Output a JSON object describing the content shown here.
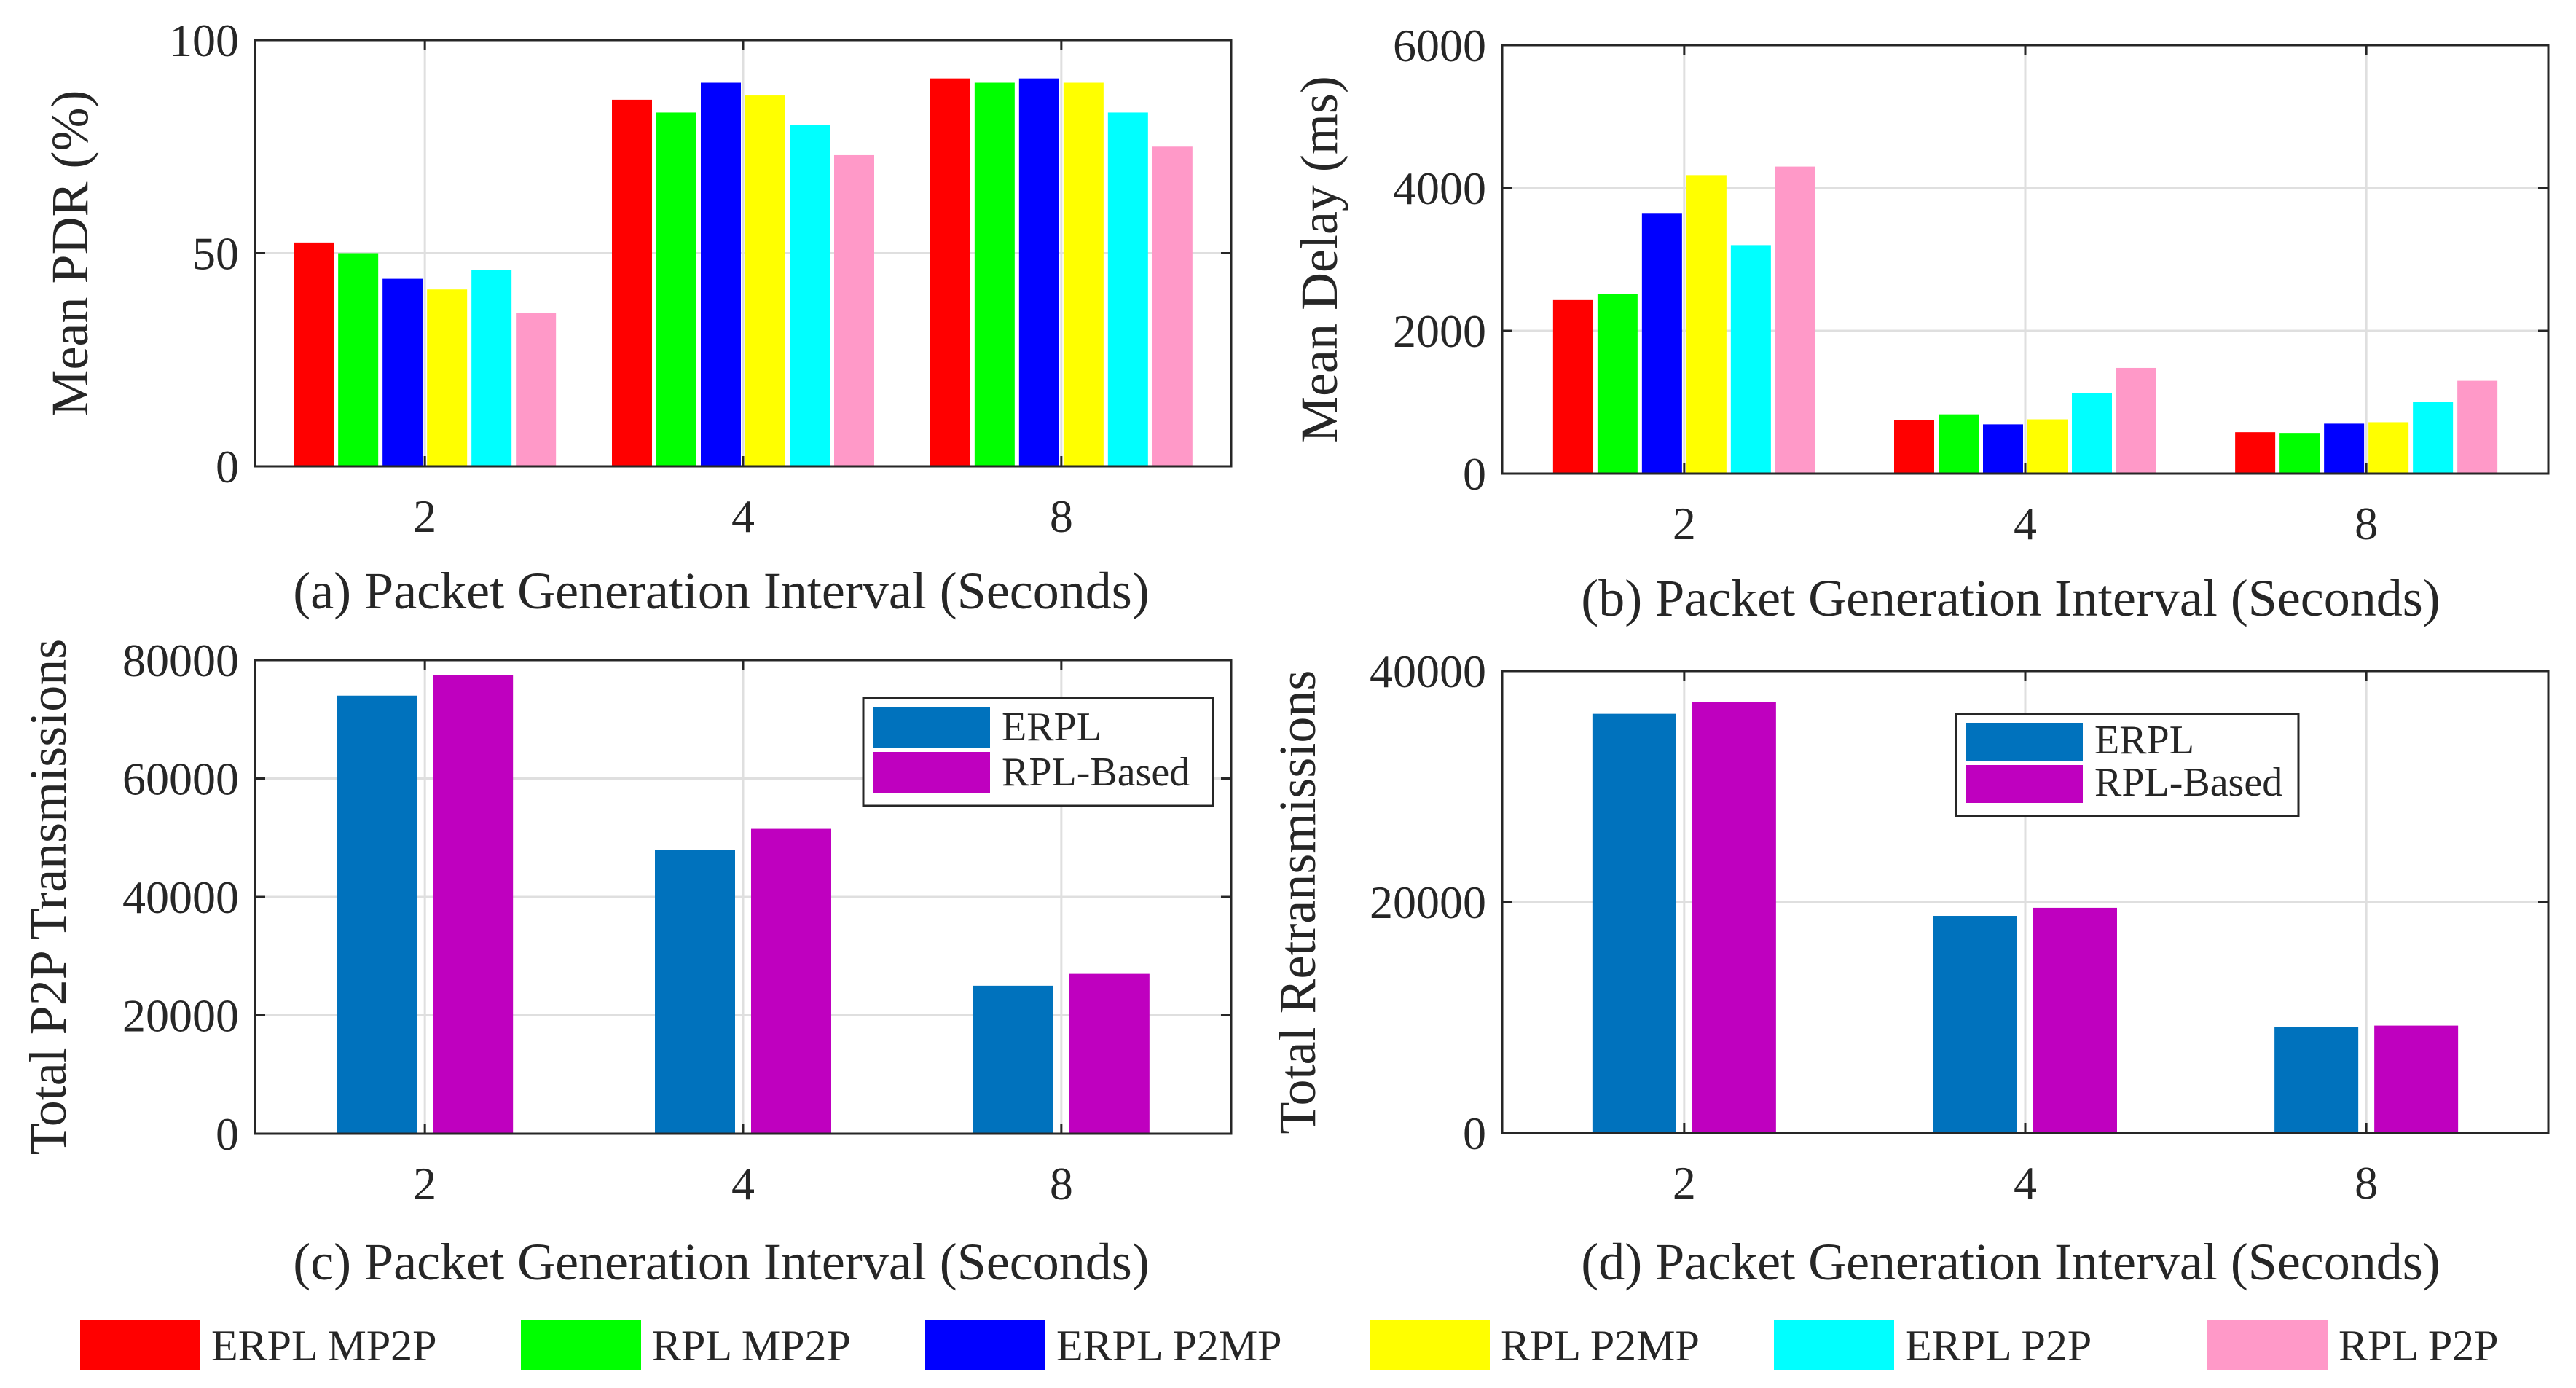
{
  "chart_data": [
    {
      "id": "a",
      "type": "bar",
      "caption": "(a) Packet Generation Interval (Seconds)",
      "ylabel": "Mean PDR (%)",
      "categories": [
        "2",
        "4",
        "8"
      ],
      "ylim": [
        0,
        100
      ],
      "yticks": [
        0,
        50,
        100
      ],
      "grid": true,
      "series": [
        {
          "name": "ERPL MP2P",
          "color": "#ff0000",
          "values": [
            52.5,
            86,
            91
          ]
        },
        {
          "name": "RPL MP2P",
          "color": "#00ff00",
          "values": [
            50,
            83,
            90
          ]
        },
        {
          "name": "ERPL P2MP",
          "color": "#0000ff",
          "values": [
            44,
            90,
            91
          ]
        },
        {
          "name": "RPL P2MP",
          "color": "#ffff00",
          "values": [
            41.5,
            87,
            90
          ]
        },
        {
          "name": "ERPL P2P",
          "color": "#00ffff",
          "values": [
            46,
            80,
            83
          ]
        },
        {
          "name": "RPL P2P",
          "color": "#ff99c8",
          "values": [
            36,
            73,
            75
          ]
        }
      ]
    },
    {
      "id": "b",
      "type": "bar",
      "caption": "(b) Packet Generation Interval (Seconds)",
      "ylabel": "Mean Delay (ms)",
      "categories": [
        "2",
        "4",
        "8"
      ],
      "ylim": [
        0,
        6000
      ],
      "yticks": [
        0,
        2000,
        4000,
        6000
      ],
      "grid": true,
      "series": [
        {
          "name": "ERPL MP2P",
          "color": "#ff0000",
          "values": [
            2430,
            750,
            580
          ]
        },
        {
          "name": "RPL MP2P",
          "color": "#00ff00",
          "values": [
            2520,
            830,
            570
          ]
        },
        {
          "name": "ERPL P2MP",
          "color": "#0000ff",
          "values": [
            3640,
            690,
            700
          ]
        },
        {
          "name": "RPL P2MP",
          "color": "#ffff00",
          "values": [
            4180,
            760,
            720
          ]
        },
        {
          "name": "ERPL P2P",
          "color": "#00ffff",
          "values": [
            3200,
            1130,
            1000
          ]
        },
        {
          "name": "RPL P2P",
          "color": "#ff99c8",
          "values": [
            4300,
            1480,
            1300
          ]
        }
      ]
    },
    {
      "id": "c",
      "type": "bar",
      "caption": "(c) Packet Generation Interval (Seconds)",
      "ylabel": "Total P2P Transmissions",
      "categories": [
        "2",
        "4",
        "8"
      ],
      "ylim": [
        0,
        80000
      ],
      "yticks": [
        0,
        20000,
        40000,
        60000,
        80000
      ],
      "grid": true,
      "legend_position": "top-right",
      "series": [
        {
          "name": "ERPL",
          "color": "#0072bd",
          "values": [
            74000,
            48000,
            25000
          ]
        },
        {
          "name": "RPL-Based",
          "color": "#bf00bf",
          "values": [
            77500,
            51500,
            27000
          ]
        }
      ]
    },
    {
      "id": "d",
      "type": "bar",
      "caption": "(d) Packet Generation Interval (Seconds)",
      "ylabel": "Total Retransmissions",
      "categories": [
        "2",
        "4",
        "8"
      ],
      "ylim": [
        0,
        40000
      ],
      "yticks": [
        0,
        20000,
        40000
      ],
      "grid": true,
      "legend_position": "top-right",
      "series": [
        {
          "name": "ERPL",
          "color": "#0072bd",
          "values": [
            36300,
            18800,
            9200
          ]
        },
        {
          "name": "RPL-Based",
          "color": "#bf00bf",
          "values": [
            37300,
            19500,
            9300
          ]
        }
      ]
    }
  ],
  "bottom_legend": [
    {
      "name": "ERPL MP2P",
      "color": "#ff0000"
    },
    {
      "name": "RPL MP2P",
      "color": "#00ff00"
    },
    {
      "name": "ERPL P2MP",
      "color": "#0000ff"
    },
    {
      "name": "RPL P2MP",
      "color": "#ffff00"
    },
    {
      "name": "ERPL P2P",
      "color": "#00ffff"
    },
    {
      "name": "RPL P2P",
      "color": "#ff99c8"
    }
  ]
}
